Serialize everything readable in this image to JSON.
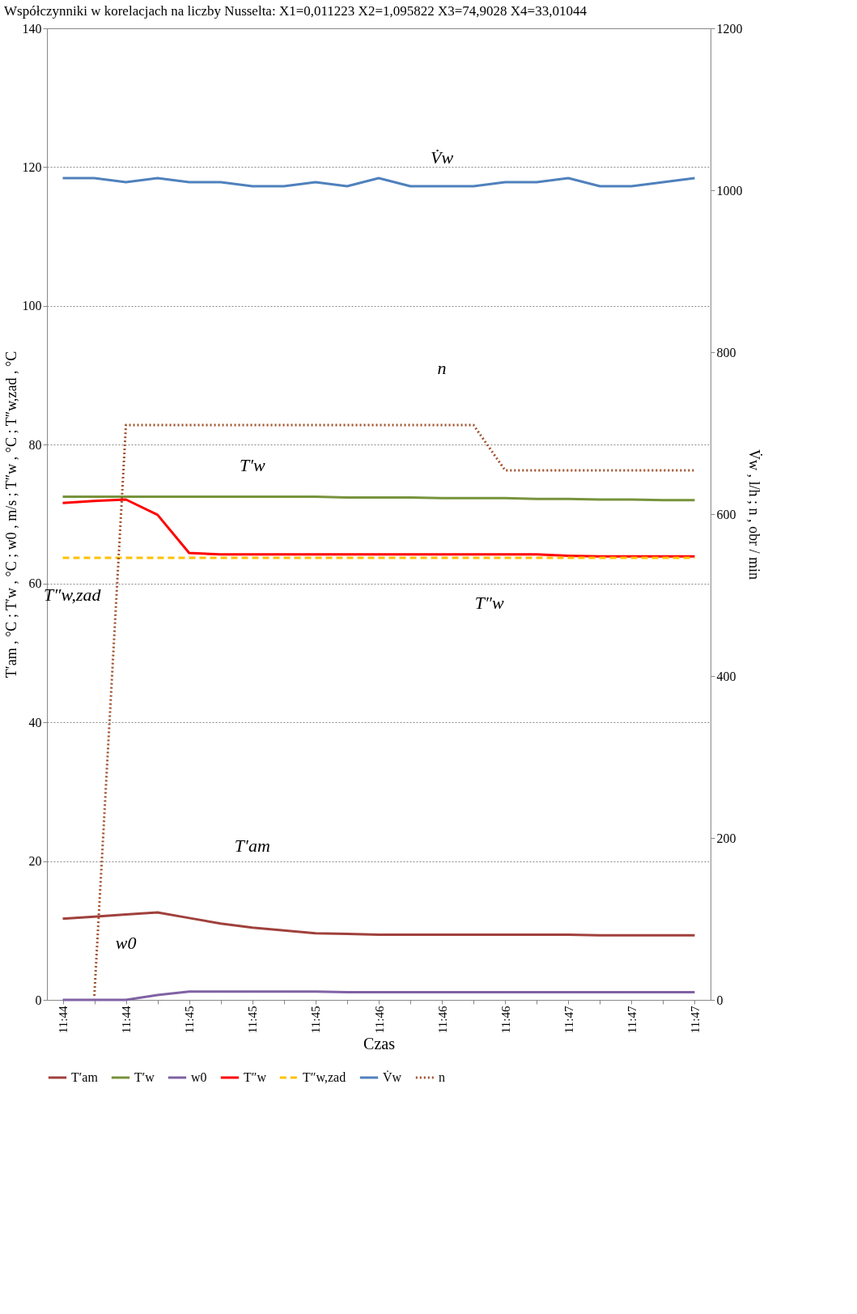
{
  "chart_data": {
    "type": "line",
    "title": "Współczynniki w korelacjach na liczby Nusselta:  X1=0,011223  X2=1,095822  X3=74,9028  X4=33,01044",
    "xlabel": "Czas",
    "ylabel": "T′am , °C ; T′w , °C ; w0 , m/s ; T″w , °C ; T″w,zad , °C",
    "y2label": "V̇w , l/h ; n , obr / min",
    "categories": [
      "11:44",
      null,
      "11:44",
      null,
      "11:45",
      null,
      "11:45",
      null,
      "11:45",
      null,
      "11:46",
      null,
      "11:46",
      null,
      "11:46",
      null,
      "11:47",
      null,
      "11:47",
      null,
      "11:47"
    ],
    "ylim": [
      0,
      140
    ],
    "yticks": [
      0,
      20,
      40,
      60,
      80,
      100,
      120,
      140
    ],
    "y2lim": [
      0,
      1200
    ],
    "y2ticks": [
      0,
      200,
      400,
      600,
      800,
      1000,
      {
        "value": 1200,
        "label": "1200"
      }
    ],
    "grid": "y",
    "legend": "bottom",
    "marker": "none",
    "series": [
      {
        "name": "T′am",
        "color": "#a0403c",
        "line_style": "solid",
        "values": [
          11.7,
          12.0,
          12.3,
          12.6,
          11.8,
          11.0,
          10.4,
          10.0,
          9.6,
          9.5,
          9.4,
          9.4,
          9.4,
          9.4,
          9.4,
          9.4,
          9.4,
          9.3,
          9.3,
          9.3,
          9.3
        ]
      },
      {
        "name": "T′w",
        "color": "#77933c",
        "line_style": "solid",
        "values": [
          72.5,
          72.5,
          72.5,
          72.5,
          72.5,
          72.5,
          72.5,
          72.5,
          72.5,
          72.4,
          72.4,
          72.4,
          72.3,
          72.3,
          72.3,
          72.2,
          72.2,
          72.1,
          72.1,
          72.0,
          72.0
        ]
      },
      {
        "name": "w0",
        "color": "#7f62a4",
        "line_style": "solid",
        "values": [
          0,
          0,
          0,
          0.7,
          1.2,
          1.2,
          1.2,
          1.2,
          1.2,
          1.1,
          1.1,
          1.1,
          1.1,
          1.1,
          1.1,
          1.1,
          1.1,
          1.1,
          1.1,
          1.1,
          1.1
        ]
      },
      {
        "name": "T″w",
        "color": "#ff0000",
        "line_style": "solid",
        "values": [
          71.6,
          71.9,
          72.1,
          69.9,
          64.4,
          64.2,
          64.2,
          64.2,
          64.2,
          64.2,
          64.2,
          64.2,
          64.2,
          64.2,
          64.2,
          64.2,
          64.0,
          63.9,
          63.9,
          63.9,
          63.9
        ]
      },
      {
        "name": "T″w,zad",
        "color": "#ffc000",
        "line_style": "dashed",
        "values": [
          63.7,
          63.7,
          63.7,
          63.7,
          63.7,
          63.7,
          63.7,
          63.7,
          63.7,
          63.7,
          63.7,
          63.7,
          63.7,
          63.7,
          63.7,
          63.7,
          63.7,
          63.7,
          63.7,
          63.7,
          63.7
        ]
      },
      {
        "name": "V̇w",
        "color": "#4f81bd",
        "line_style": "solid",
        "axis": "y2",
        "values": [
          1015,
          1015,
          1010,
          1015,
          1010,
          1010,
          1005,
          1005,
          1010,
          1005,
          1015,
          1005,
          1005,
          1005,
          1010,
          1010,
          1015,
          1005,
          1005,
          1010,
          1015
        ]
      },
      {
        "name": "n",
        "color": "#a0522d",
        "line_style": "dotted",
        "axis": "y2",
        "values": [
          null,
          5,
          710,
          710,
          710,
          710,
          710,
          710,
          710,
          710,
          710,
          710,
          710,
          710,
          654,
          654,
          654,
          654,
          654,
          654,
          654
        ]
      }
    ],
    "annotations": [
      "V̇w",
      "n",
      "T″w",
      "T′w",
      "T′am",
      "w0",
      "T″w,zad"
    ]
  }
}
